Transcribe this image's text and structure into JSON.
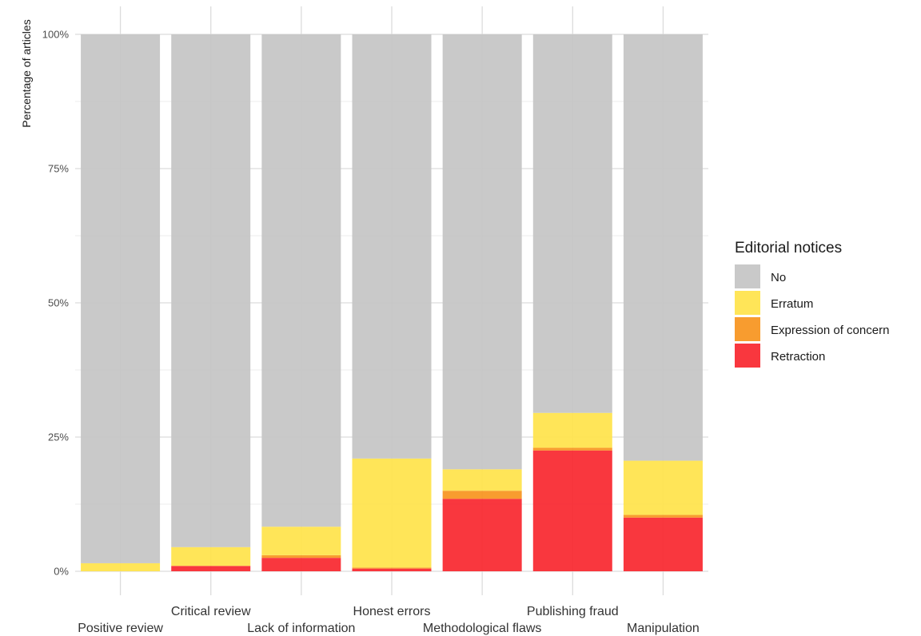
{
  "chart_data": {
    "type": "bar",
    "stacked": true,
    "ylabel": "Percentage of articles",
    "yticks": [
      "0%",
      "25%",
      "50%",
      "75%",
      "100%"
    ],
    "ylim": [
      0,
      100
    ],
    "grid": true,
    "legend_position": "right",
    "legend_title": "Editorial notices",
    "categories": [
      "Positive review",
      "Critical review",
      "Lack of information",
      "Honest errors",
      "Methodological flaws",
      "Publishing fraud",
      "Manipulation"
    ],
    "series": [
      {
        "name": "Retraction",
        "color": "#f8262e",
        "values": [
          0,
          1,
          2.5,
          0.5,
          13.5,
          22.5,
          10
        ]
      },
      {
        "name": "Expression of concern",
        "color": "#f7941d",
        "values": [
          0,
          0,
          0.5,
          0.2,
          1.5,
          0.5,
          0.5
        ]
      },
      {
        "name": "Erratum",
        "color": "#ffe34a",
        "values": [
          1.5,
          3.5,
          5.3,
          20.3,
          4.0,
          6.5,
          10.1
        ]
      },
      {
        "name": "No",
        "color": "#c4c4c4",
        "values": [
          98.5,
          95.5,
          91.7,
          79.0,
          81.0,
          70.5,
          79.4
        ]
      }
    ],
    "legend_order": [
      "No",
      "Erratum",
      "Expression of concern",
      "Retraction"
    ]
  }
}
